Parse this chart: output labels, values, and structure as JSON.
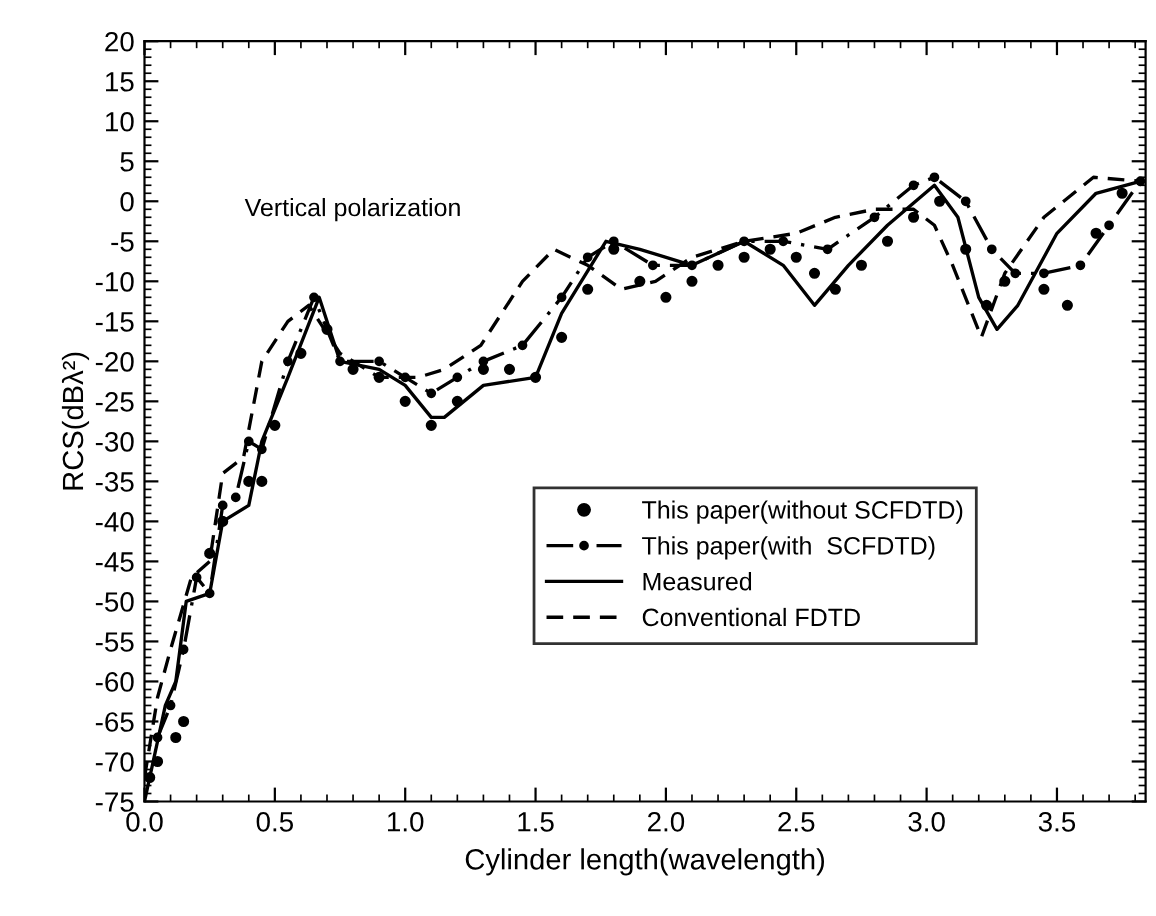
{
  "chart_data": {
    "type": "line",
    "xlabel": "Cylinder length(wavelength)",
    "ylabel": "RCS(dBλ²)",
    "annotations": [
      "Vertical polarization"
    ],
    "xlim": [
      0,
      3.84
    ],
    "ylim": [
      -75,
      20
    ],
    "xticks": [
      {
        "value": 0,
        "label": "0.0"
      },
      0.5,
      {
        "value": 1,
        "label": "1.0"
      },
      1.5,
      {
        "value": 2,
        "label": "2.0"
      },
      2.5,
      {
        "value": 3,
        "label": "3.0"
      },
      3.5
    ],
    "yticks": [
      -75,
      -70,
      -65,
      -60,
      -55,
      -50,
      -45,
      -40,
      -35,
      -30,
      -25,
      -20,
      -15,
      -10,
      -5,
      0,
      5,
      10,
      15,
      20
    ],
    "legend": "center right",
    "grid": false,
    "series": [
      {
        "name": "This paper(without SCFDTD)",
        "type": "scatter",
        "marker": "circle",
        "color": "#000000",
        "x": [
          0.02,
          0.05,
          0.12,
          0.15,
          0.25,
          0.3,
          0.4,
          0.45,
          0.5,
          0.6,
          0.7,
          0.8,
          0.9,
          1.0,
          1.1,
          1.2,
          1.3,
          1.4,
          1.5,
          1.6,
          1.7,
          1.8,
          1.9,
          2.0,
          2.1,
          2.2,
          2.3,
          2.4,
          2.5,
          2.57,
          2.65,
          2.75,
          2.85,
          2.95,
          3.05,
          3.15,
          3.23,
          3.3,
          3.45,
          3.54,
          3.65,
          3.75
        ],
        "values": [
          -72,
          -70,
          -67,
          -65,
          -44,
          -40,
          -35,
          -35,
          -28,
          -19,
          -16,
          -21,
          -22,
          -25,
          -28,
          -25,
          -21,
          -21,
          -22,
          -17,
          -11,
          -6,
          -10,
          -12,
          -10,
          -8,
          -7,
          -6,
          -7,
          -9,
          -11,
          -8,
          -5,
          -2,
          0,
          -6,
          -13,
          -10,
          -11,
          -13,
          -4,
          1
        ]
      },
      {
        "name": "This paper(with  SCFDTD)",
        "line_style": "dashdot",
        "marker": "circle",
        "color": "#000000",
        "x": [
          0.05,
          0.1,
          0.15,
          0.2,
          0.25,
          0.3,
          0.35,
          0.4,
          0.45,
          0.55,
          0.65,
          0.75,
          0.9,
          1.0,
          1.1,
          1.2,
          1.3,
          1.45,
          1.6,
          1.7,
          1.8,
          1.95,
          2.1,
          2.3,
          2.45,
          2.62,
          2.8,
          2.95,
          3.03,
          3.15,
          3.25,
          3.34,
          3.45,
          3.59,
          3.7,
          3.82
        ],
        "values": [
          -67,
          -63,
          -56,
          -47,
          -49,
          -38,
          -37,
          -30,
          -31,
          -20,
          -12,
          -20,
          -20,
          -22,
          -24,
          -22,
          -20,
          -18,
          -12,
          -7,
          -5,
          -8,
          -8,
          -5,
          -5,
          -6,
          -2,
          2,
          3,
          0,
          -6,
          -9,
          -9,
          -8,
          -3,
          2.5
        ]
      },
      {
        "name": "Measured",
        "line_style": "solid",
        "marker": "none",
        "color": "#000000",
        "x": [
          0.0,
          0.08,
          0.12,
          0.16,
          0.25,
          0.3,
          0.4,
          0.45,
          0.55,
          0.67,
          0.75,
          0.9,
          1.0,
          1.1,
          1.15,
          1.3,
          1.5,
          1.6,
          1.77,
          1.9,
          2.1,
          2.3,
          2.45,
          2.57,
          2.7,
          2.85,
          3.03,
          3.12,
          3.2,
          3.27,
          3.35,
          3.5,
          3.65,
          3.82
        ],
        "values": [
          -75,
          -63,
          -60,
          -50,
          -49,
          -40,
          -38,
          -30,
          -22,
          -12,
          -20,
          -21,
          -23,
          -27,
          -27,
          -23,
          -22,
          -14,
          -5,
          -6,
          -8,
          -5,
          -8,
          -13,
          -8,
          -3,
          2,
          -2,
          -12,
          -16,
          -13,
          -4,
          1,
          2.5
        ]
      },
      {
        "name": "Conventional FDTD",
        "line_style": "dashed",
        "marker": "none",
        "color": "#000000",
        "x": [
          0.0,
          0.05,
          0.1,
          0.18,
          0.25,
          0.3,
          0.38,
          0.45,
          0.55,
          0.63,
          0.75,
          0.9,
          1.05,
          1.15,
          1.29,
          1.45,
          1.57,
          1.7,
          1.83,
          1.96,
          2.1,
          2.3,
          2.5,
          2.65,
          2.8,
          2.95,
          3.03,
          3.1,
          3.21,
          3.3,
          3.45,
          3.64,
          3.82
        ],
        "values": [
          -72,
          -62,
          -56,
          -47,
          -45,
          -34,
          -32,
          -20,
          -15,
          -13,
          -19,
          -22,
          -22,
          -21,
          -18,
          -10,
          -6,
          -8,
          -11,
          -10,
          -7,
          -5,
          -4,
          -2,
          -1,
          -1,
          -3,
          -8,
          -17,
          -9,
          -2,
          3,
          2.5
        ]
      }
    ]
  }
}
